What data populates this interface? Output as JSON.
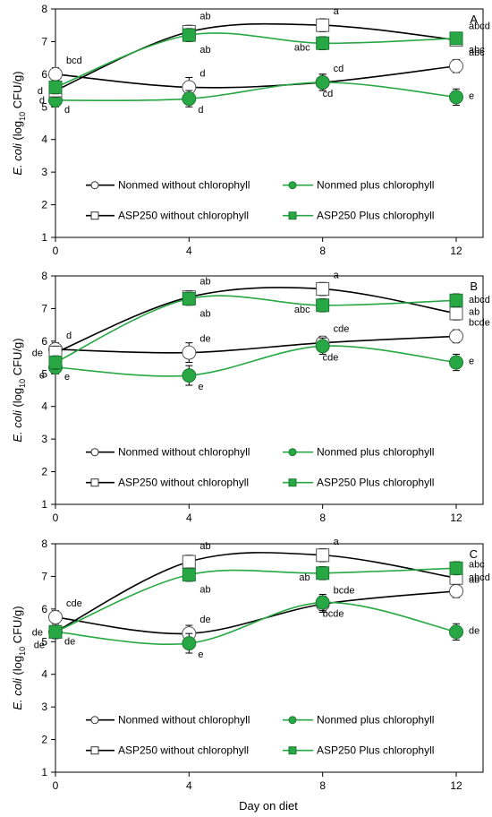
{
  "x_axis_label": "Day on diet",
  "y_axis_label": {
    "italic": "E. coli",
    "mid": " (log",
    "sub": "10",
    "tail": " CFU/g)"
  },
  "chart_data": [
    {
      "type": "line",
      "panel": "A",
      "categories": [
        0,
        4,
        8,
        12
      ],
      "ylim": [
        1,
        8
      ],
      "yticks": [
        1,
        2,
        3,
        4,
        5,
        6,
        7,
        8
      ],
      "grid": false,
      "series": [
        {
          "name": "Nonmed without chlorophyll",
          "marker": "circle-open",
          "color": "#000000",
          "values": [
            6.0,
            5.6,
            5.75,
            6.25
          ],
          "errors": [
            0.2,
            0.3,
            0.25,
            0.2
          ],
          "labels": [
            "bcd",
            "d",
            "cd",
            "abc"
          ]
        },
        {
          "name": "Nonmed plus chlorophyll",
          "marker": "circle-filled",
          "color": "#27A844",
          "values": [
            5.2,
            5.25,
            5.75,
            5.3
          ],
          "errors": [
            0.2,
            0.25,
            0.25,
            0.25
          ],
          "labels": [
            "d",
            "d",
            "cd",
            "e"
          ]
        },
        {
          "name": "ASP250 without chlorophyll",
          "marker": "square-open",
          "color": "#000000",
          "values": [
            5.5,
            7.3,
            7.5,
            7.05
          ],
          "errors": [
            0.2,
            0.2,
            0.2,
            0.15
          ],
          "labels": [
            "d",
            "ab",
            "a",
            "abcd"
          ]
        },
        {
          "name": "ASP250 Plus chlorophyll",
          "marker": "square-filled",
          "color": "#27A844",
          "values": [
            5.6,
            7.2,
            6.95,
            7.1
          ],
          "errors": [
            0.2,
            0.2,
            0.2,
            0.15
          ],
          "labels": [
            "d",
            "ab",
            "abc",
            "abc"
          ]
        }
      ]
    },
    {
      "type": "line",
      "panel": "B",
      "categories": [
        0,
        4,
        8,
        12
      ],
      "ylim": [
        1,
        8
      ],
      "yticks": [
        1,
        2,
        3,
        4,
        5,
        6,
        7,
        8
      ],
      "grid": false,
      "series": [
        {
          "name": "Nonmed without chlorophyll",
          "marker": "circle-open",
          "color": "#000000",
          "values": [
            5.75,
            5.65,
            5.95,
            6.15
          ],
          "errors": [
            0.2,
            0.3,
            0.2,
            0.2
          ],
          "labels": [
            "d",
            "de",
            "cde",
            "bcde"
          ]
        },
        {
          "name": "Nonmed plus chlorophyll",
          "marker": "circle-filled",
          "color": "#27A844",
          "values": [
            5.2,
            4.95,
            5.85,
            5.35
          ],
          "errors": [
            0.2,
            0.3,
            0.25,
            0.25
          ],
          "labels": [
            "e",
            "e",
            "cde",
            "e"
          ]
        },
        {
          "name": "ASP250 without chlorophyll",
          "marker": "square-open",
          "color": "#000000",
          "values": [
            5.65,
            7.35,
            7.6,
            6.85
          ],
          "errors": [
            0.2,
            0.2,
            0.2,
            0.2
          ],
          "labels": [
            "de",
            "ab",
            "a",
            "abcd"
          ]
        },
        {
          "name": "ASP250 Plus chlorophyll",
          "marker": "square-filled",
          "color": "#27A844",
          "values": [
            5.35,
            7.3,
            7.1,
            7.25
          ],
          "errors": [
            0.2,
            0.2,
            0.2,
            0.2
          ],
          "labels": [
            "e",
            "ab",
            "abc",
            "ab"
          ]
        }
      ]
    },
    {
      "type": "line",
      "panel": "C",
      "categories": [
        0,
        4,
        8,
        12
      ],
      "ylim": [
        1,
        8
      ],
      "yticks": [
        1,
        2,
        3,
        4,
        5,
        6,
        7,
        8
      ],
      "grid": false,
      "series": [
        {
          "name": "Nonmed without chlorophyll",
          "marker": "circle-open",
          "color": "#000000",
          "values": [
            5.75,
            5.25,
            6.15,
            6.55
          ],
          "errors": [
            0.2,
            0.25,
            0.25,
            0.2
          ],
          "labels": [
            "cde",
            "de",
            "bcde",
            "abcd"
          ]
        },
        {
          "name": "Nonmed plus chlorophyll",
          "marker": "circle-filled",
          "color": "#27A844",
          "values": [
            5.3,
            4.95,
            6.2,
            5.3
          ],
          "errors": [
            0.2,
            0.3,
            0.25,
            0.25
          ],
          "labels": [
            "de",
            "e",
            "bcde",
            "de"
          ]
        },
        {
          "name": "ASP250 without chlorophyll",
          "marker": "square-open",
          "color": "#000000",
          "values": [
            5.3,
            7.45,
            7.65,
            6.95
          ],
          "errors": [
            0.2,
            0.2,
            0.2,
            0.2
          ],
          "labels": [
            "de",
            "ab",
            "a",
            "abc"
          ]
        },
        {
          "name": "ASP250 Plus chlorophyll",
          "marker": "square-filled",
          "color": "#27A844",
          "values": [
            5.3,
            7.05,
            7.1,
            7.25
          ],
          "errors": [
            0.2,
            0.2,
            0.2,
            0.2
          ],
          "labels": [
            "de",
            "ab",
            "ab",
            "ab"
          ]
        }
      ]
    }
  ]
}
